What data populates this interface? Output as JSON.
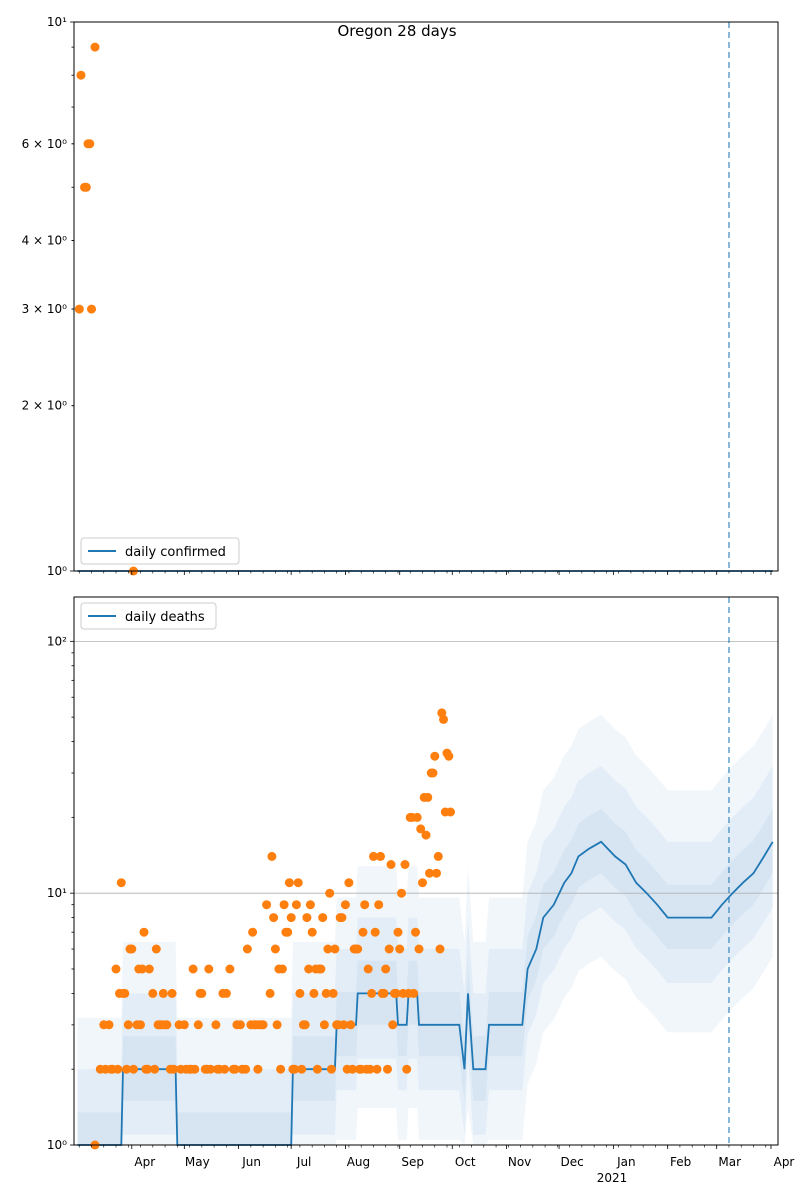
{
  "title": "Oregon 28 days",
  "chart_data": [
    {
      "type": "scatter",
      "scale": "log",
      "ylim": [
        1,
        10
      ],
      "grid": false,
      "legend_placement": "lower-left",
      "legend": "daily confirmed",
      "y_ticks": [
        {
          "value": 1,
          "label": "10⁰",
          "major": true
        },
        {
          "value": 2,
          "label": "2 × 10⁰",
          "major": false
        },
        {
          "value": 3,
          "label": "3 × 10⁰",
          "major": false
        },
        {
          "value": 4,
          "label": "4 × 10⁰",
          "major": false
        },
        {
          "value": 6,
          "label": "6 × 10⁰",
          "major": false
        },
        {
          "value": 10,
          "label": "10¹",
          "major": true
        }
      ],
      "points": [
        {
          "x": "2020-03-02",
          "y": 3
        },
        {
          "x": "2020-03-03",
          "y": 8
        },
        {
          "x": "2020-03-05",
          "y": 5
        },
        {
          "x": "2020-03-06",
          "y": 5
        },
        {
          "x": "2020-03-07",
          "y": 6
        },
        {
          "x": "2020-03-08",
          "y": 6
        },
        {
          "x": "2020-03-09",
          "y": 3
        },
        {
          "x": "2020-03-11",
          "y": 9
        },
        {
          "x": "2020-04-02",
          "y": 1
        }
      ],
      "line": [
        {
          "x": "2020-03-01",
          "y": 1
        },
        {
          "x": "2021-04-02",
          "y": 1
        }
      ],
      "vline": "2021-03-08"
    },
    {
      "type": "scatter",
      "scale": "log",
      "ylim": [
        1,
        150
      ],
      "grid": true,
      "legend_placement": "upper-left",
      "legend": "daily deaths",
      "y_ticks": [
        {
          "value": 1,
          "label": "10⁰",
          "major": true
        },
        {
          "value": 10,
          "label": "10¹",
          "major": true
        },
        {
          "value": 100,
          "label": "10²",
          "major": true
        }
      ],
      "x_tick_labels": [
        "Apr",
        "May",
        "Jun",
        "Jul",
        "Aug",
        "Sep",
        "Oct",
        "Nov",
        "Dec",
        "Jan",
        "Feb",
        "Mar",
        "Apr"
      ],
      "x_tick_dates": [
        "2020-04-01",
        "2020-05-01",
        "2020-06-01",
        "2020-07-01",
        "2020-08-01",
        "2020-09-01",
        "2020-10-01",
        "2020-11-01",
        "2020-12-01",
        "2021-01-01",
        "2021-02-01",
        "2021-03-01",
        "2021-04-01"
      ],
      "year_label": "2021",
      "points": [
        {
          "x": "2020-03-11",
          "y": 1
        },
        {
          "x": "2020-03-14",
          "y": 2
        },
        {
          "x": "2020-03-16",
          "y": 3
        },
        {
          "x": "2020-03-17",
          "y": 2
        },
        {
          "x": "2020-03-19",
          "y": 3
        },
        {
          "x": "2020-03-20",
          "y": 2
        },
        {
          "x": "2020-03-21",
          "y": 2
        },
        {
          "x": "2020-03-23",
          "y": 5
        },
        {
          "x": "2020-03-24",
          "y": 2
        },
        {
          "x": "2020-03-25",
          "y": 4
        },
        {
          "x": "2020-03-26",
          "y": 11
        },
        {
          "x": "2020-03-27",
          "y": 4
        },
        {
          "x": "2020-03-28",
          "y": 4
        },
        {
          "x": "2020-03-29",
          "y": 2
        },
        {
          "x": "2020-03-30",
          "y": 3
        },
        {
          "x": "2020-03-31",
          "y": 6
        },
        {
          "x": "2020-04-01",
          "y": 6
        },
        {
          "x": "2020-04-02",
          "y": 2
        },
        {
          "x": "2020-04-04",
          "y": 3
        },
        {
          "x": "2020-04-05",
          "y": 5
        },
        {
          "x": "2020-04-06",
          "y": 3
        },
        {
          "x": "2020-04-07",
          "y": 5
        },
        {
          "x": "2020-04-08",
          "y": 7
        },
        {
          "x": "2020-04-09",
          "y": 2
        },
        {
          "x": "2020-04-10",
          "y": 2
        },
        {
          "x": "2020-04-11",
          "y": 5
        },
        {
          "x": "2020-04-13",
          "y": 4
        },
        {
          "x": "2020-04-14",
          "y": 2
        },
        {
          "x": "2020-04-15",
          "y": 6
        },
        {
          "x": "2020-04-16",
          "y": 3
        },
        {
          "x": "2020-04-17",
          "y": 3
        },
        {
          "x": "2020-04-18",
          "y": 3
        },
        {
          "x": "2020-04-19",
          "y": 4
        },
        {
          "x": "2020-04-20",
          "y": 3
        },
        {
          "x": "2020-04-21",
          "y": 3
        },
        {
          "x": "2020-04-23",
          "y": 2
        },
        {
          "x": "2020-04-24",
          "y": 4
        },
        {
          "x": "2020-04-25",
          "y": 2
        },
        {
          "x": "2020-04-28",
          "y": 3
        },
        {
          "x": "2020-04-29",
          "y": 2
        },
        {
          "x": "2020-05-01",
          "y": 3
        },
        {
          "x": "2020-05-02",
          "y": 2
        },
        {
          "x": "2020-05-04",
          "y": 2
        },
        {
          "x": "2020-05-05",
          "y": 2
        },
        {
          "x": "2020-05-06",
          "y": 5
        },
        {
          "x": "2020-05-07",
          "y": 2
        },
        {
          "x": "2020-05-09",
          "y": 3
        },
        {
          "x": "2020-05-10",
          "y": 4
        },
        {
          "x": "2020-05-11",
          "y": 4
        },
        {
          "x": "2020-05-13",
          "y": 2
        },
        {
          "x": "2020-05-14",
          "y": 2
        },
        {
          "x": "2020-05-15",
          "y": 5
        },
        {
          "x": "2020-05-16",
          "y": 2
        },
        {
          "x": "2020-05-19",
          "y": 3
        },
        {
          "x": "2020-05-20",
          "y": 2
        },
        {
          "x": "2020-05-21",
          "y": 2
        },
        {
          "x": "2020-05-23",
          "y": 4
        },
        {
          "x": "2020-05-24",
          "y": 2
        },
        {
          "x": "2020-05-25",
          "y": 4
        },
        {
          "x": "2020-05-27",
          "y": 5
        },
        {
          "x": "2020-05-29",
          "y": 2
        },
        {
          "x": "2020-05-30",
          "y": 2
        },
        {
          "x": "2020-05-31",
          "y": 3
        },
        {
          "x": "2020-06-02",
          "y": 3
        },
        {
          "x": "2020-06-03",
          "y": 2
        },
        {
          "x": "2020-06-05",
          "y": 2
        },
        {
          "x": "2020-06-06",
          "y": 6
        },
        {
          "x": "2020-06-08",
          "y": 3
        },
        {
          "x": "2020-06-09",
          "y": 7
        },
        {
          "x": "2020-06-10",
          "y": 3
        },
        {
          "x": "2020-06-11",
          "y": 3
        },
        {
          "x": "2020-06-12",
          "y": 2
        },
        {
          "x": "2020-06-13",
          "y": 3
        },
        {
          "x": "2020-06-14",
          "y": 3
        },
        {
          "x": "2020-06-15",
          "y": 3
        },
        {
          "x": "2020-06-17",
          "y": 9
        },
        {
          "x": "2020-06-19",
          "y": 4
        },
        {
          "x": "2020-06-20",
          "y": 14
        },
        {
          "x": "2020-06-21",
          "y": 8
        },
        {
          "x": "2020-06-22",
          "y": 6
        },
        {
          "x": "2020-06-23",
          "y": 3
        },
        {
          "x": "2020-06-24",
          "y": 5
        },
        {
          "x": "2020-06-25",
          "y": 2
        },
        {
          "x": "2020-06-26",
          "y": 5
        },
        {
          "x": "2020-06-27",
          "y": 9
        },
        {
          "x": "2020-06-28",
          "y": 7
        },
        {
          "x": "2020-06-29",
          "y": 7
        },
        {
          "x": "2020-06-30",
          "y": 11
        },
        {
          "x": "2020-07-01",
          "y": 8
        },
        {
          "x": "2020-07-02",
          "y": 2
        },
        {
          "x": "2020-07-03",
          "y": 2
        },
        {
          "x": "2020-07-04",
          "y": 9
        },
        {
          "x": "2020-07-05",
          "y": 11
        },
        {
          "x": "2020-07-06",
          "y": 4
        },
        {
          "x": "2020-07-07",
          "y": 2
        },
        {
          "x": "2020-07-08",
          "y": 3
        },
        {
          "x": "2020-07-09",
          "y": 3
        },
        {
          "x": "2020-07-10",
          "y": 8
        },
        {
          "x": "2020-07-11",
          "y": 5
        },
        {
          "x": "2020-07-12",
          "y": 9
        },
        {
          "x": "2020-07-13",
          "y": 7
        },
        {
          "x": "2020-07-14",
          "y": 4
        },
        {
          "x": "2020-07-15",
          "y": 5
        },
        {
          "x": "2020-07-16",
          "y": 2
        },
        {
          "x": "2020-07-17",
          "y": 5
        },
        {
          "x": "2020-07-18",
          "y": 5
        },
        {
          "x": "2020-07-19",
          "y": 8
        },
        {
          "x": "2020-07-20",
          "y": 3
        },
        {
          "x": "2020-07-21",
          "y": 4
        },
        {
          "x": "2020-07-22",
          "y": 6
        },
        {
          "x": "2020-07-23",
          "y": 10
        },
        {
          "x": "2020-07-24",
          "y": 2
        },
        {
          "x": "2020-07-25",
          "y": 4
        },
        {
          "x": "2020-07-26",
          "y": 6
        },
        {
          "x": "2020-07-27",
          "y": 3
        },
        {
          "x": "2020-07-28",
          "y": 3
        },
        {
          "x": "2020-07-29",
          "y": 8
        },
        {
          "x": "2020-07-30",
          "y": 8
        },
        {
          "x": "2020-07-31",
          "y": 3
        },
        {
          "x": "2020-08-01",
          "y": 9
        },
        {
          "x": "2020-08-02",
          "y": 2
        },
        {
          "x": "2020-08-03",
          "y": 11
        },
        {
          "x": "2020-08-04",
          "y": 3
        },
        {
          "x": "2020-08-05",
          "y": 2
        },
        {
          "x": "2020-08-06",
          "y": 6
        },
        {
          "x": "2020-08-07",
          "y": 6
        },
        {
          "x": "2020-08-08",
          "y": 6
        },
        {
          "x": "2020-08-09",
          "y": 2
        },
        {
          "x": "2020-08-10",
          "y": 2
        },
        {
          "x": "2020-08-11",
          "y": 7
        },
        {
          "x": "2020-08-12",
          "y": 9
        },
        {
          "x": "2020-08-13",
          "y": 2
        },
        {
          "x": "2020-08-14",
          "y": 5
        },
        {
          "x": "2020-08-15",
          "y": 2
        },
        {
          "x": "2020-08-16",
          "y": 4
        },
        {
          "x": "2020-08-17",
          "y": 14
        },
        {
          "x": "2020-08-18",
          "y": 7
        },
        {
          "x": "2020-08-19",
          "y": 2
        },
        {
          "x": "2020-08-20",
          "y": 9
        },
        {
          "x": "2020-08-21",
          "y": 14
        },
        {
          "x": "2020-08-22",
          "y": 4
        },
        {
          "x": "2020-08-23",
          "y": 4
        },
        {
          "x": "2020-08-24",
          "y": 5
        },
        {
          "x": "2020-08-25",
          "y": 2
        },
        {
          "x": "2020-08-26",
          "y": 6
        },
        {
          "x": "2020-08-27",
          "y": 13
        },
        {
          "x": "2020-08-28",
          "y": 3
        },
        {
          "x": "2020-08-29",
          "y": 4
        },
        {
          "x": "2020-08-30",
          "y": 4
        },
        {
          "x": "2020-08-31",
          "y": 7
        },
        {
          "x": "2020-09-01",
          "y": 6
        },
        {
          "x": "2020-09-02",
          "y": 10
        },
        {
          "x": "2020-09-03",
          "y": 4
        },
        {
          "x": "2020-09-04",
          "y": 13
        },
        {
          "x": "2020-09-05",
          "y": 2
        },
        {
          "x": "2020-09-06",
          "y": 4
        },
        {
          "x": "2020-09-07",
          "y": 20
        },
        {
          "x": "2020-09-08",
          "y": 20
        },
        {
          "x": "2020-09-09",
          "y": 4
        },
        {
          "x": "2020-09-10",
          "y": 7
        },
        {
          "x": "2020-09-11",
          "y": 20
        },
        {
          "x": "2020-09-12",
          "y": 6
        },
        {
          "x": "2020-09-13",
          "y": 18
        },
        {
          "x": "2020-09-14",
          "y": 11
        },
        {
          "x": "2020-09-15",
          "y": 24
        },
        {
          "x": "2020-09-16",
          "y": 17
        },
        {
          "x": "2020-09-17",
          "y": 24
        },
        {
          "x": "2020-09-18",
          "y": 12
        },
        {
          "x": "2020-09-19",
          "y": 30
        },
        {
          "x": "2020-09-20",
          "y": 30
        },
        {
          "x": "2020-09-21",
          "y": 35
        },
        {
          "x": "2020-09-22",
          "y": 12
        },
        {
          "x": "2020-09-23",
          "y": 14
        },
        {
          "x": "2020-09-24",
          "y": 6
        },
        {
          "x": "2020-09-25",
          "y": 52
        },
        {
          "x": "2020-09-26",
          "y": 49
        },
        {
          "x": "2020-09-27",
          "y": 21
        },
        {
          "x": "2020-09-28",
          "y": 36
        },
        {
          "x": "2020-09-29",
          "y": 35
        },
        {
          "x": "2020-09-30",
          "y": 21
        }
      ],
      "line": [
        {
          "x": "2020-03-01",
          "y": 1
        },
        {
          "x": "2020-03-26",
          "y": 1
        },
        {
          "x": "2020-03-27",
          "y": 2
        },
        {
          "x": "2020-04-26",
          "y": 2
        },
        {
          "x": "2020-04-27",
          "y": 1
        },
        {
          "x": "2020-07-01",
          "y": 1
        },
        {
          "x": "2020-07-02",
          "y": 2
        },
        {
          "x": "2020-07-26",
          "y": 2
        },
        {
          "x": "2020-07-27",
          "y": 3
        },
        {
          "x": "2020-08-07",
          "y": 3
        },
        {
          "x": "2020-08-08",
          "y": 4
        },
        {
          "x": "2020-08-30",
          "y": 4
        },
        {
          "x": "2020-08-31",
          "y": 3
        },
        {
          "x": "2020-09-05",
          "y": 3
        },
        {
          "x": "2020-09-06",
          "y": 4
        },
        {
          "x": "2020-09-11",
          "y": 4
        },
        {
          "x": "2020-09-12",
          "y": 3
        },
        {
          "x": "2020-09-25",
          "y": 3
        },
        {
          "x": "2020-10-05",
          "y": 3
        },
        {
          "x": "2020-10-08",
          "y": 2
        },
        {
          "x": "2020-10-10",
          "y": 4
        },
        {
          "x": "2020-10-13",
          "y": 2
        },
        {
          "x": "2020-10-20",
          "y": 2
        },
        {
          "x": "2020-10-22",
          "y": 3
        },
        {
          "x": "2020-11-10",
          "y": 3
        },
        {
          "x": "2020-11-13",
          "y": 5
        },
        {
          "x": "2020-11-18",
          "y": 6
        },
        {
          "x": "2020-11-22",
          "y": 8
        },
        {
          "x": "2020-11-28",
          "y": 9
        },
        {
          "x": "2020-12-04",
          "y": 11
        },
        {
          "x": "2020-12-08",
          "y": 12
        },
        {
          "x": "2020-12-12",
          "y": 14
        },
        {
          "x": "2020-12-18",
          "y": 15
        },
        {
          "x": "2020-12-25",
          "y": 16
        },
        {
          "x": "2021-01-02",
          "y": 14
        },
        {
          "x": "2021-01-08",
          "y": 13
        },
        {
          "x": "2021-01-14",
          "y": 11
        },
        {
          "x": "2021-01-20",
          "y": 10
        },
        {
          "x": "2021-01-26",
          "y": 9
        },
        {
          "x": "2021-02-01",
          "y": 8
        },
        {
          "x": "2021-02-08",
          "y": 8
        },
        {
          "x": "2021-02-14",
          "y": 8
        },
        {
          "x": "2021-02-20",
          "y": 8
        },
        {
          "x": "2021-02-26",
          "y": 8
        },
        {
          "x": "2021-03-04",
          "y": 9
        },
        {
          "x": "2021-03-10",
          "y": 10
        },
        {
          "x": "2021-03-16",
          "y": 11
        },
        {
          "x": "2021-03-22",
          "y": 12
        },
        {
          "x": "2021-03-28",
          "y": 14
        },
        {
          "x": "2021-04-02",
          "y": 16
        }
      ],
      "vline": "2021-03-08"
    }
  ]
}
